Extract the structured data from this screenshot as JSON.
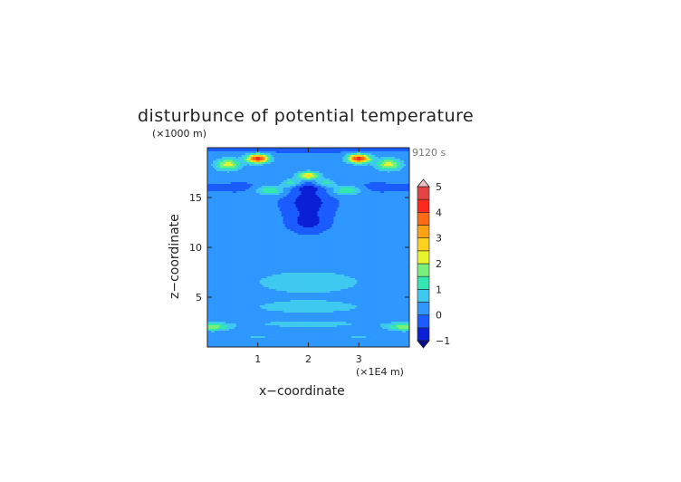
{
  "chart_data": {
    "type": "heatmap",
    "title": "disturbunce of potential temperature",
    "ylabel": "z−coordinate",
    "xlabel": "x−coordinate",
    "y_unit": "(×1000 m)",
    "x_unit": "(×1E4 m)",
    "time_label": "9120 s",
    "xlim": [
      0,
      4
    ],
    "ylim": [
      0,
      20
    ],
    "x_ticks": [
      {
        "value": 1,
        "label": "1"
      },
      {
        "value": 2,
        "label": "2"
      },
      {
        "value": 3,
        "label": "3"
      }
    ],
    "y_ticks": [
      {
        "value": 5,
        "label": "5"
      },
      {
        "value": 10,
        "label": "10"
      },
      {
        "value": 15,
        "label": "15"
      }
    ],
    "colorbar": {
      "min": -1,
      "max": 5,
      "step": 0.5,
      "tick_labels": [
        {
          "value": 5,
          "label": "5"
        },
        {
          "value": 4,
          "label": "4"
        },
        {
          "value": 3,
          "label": "3"
        },
        {
          "value": 2,
          "label": "2"
        },
        {
          "value": 1,
          "label": "1"
        },
        {
          "value": 0,
          "label": "0"
        },
        {
          "value": -1,
          "label": "−1"
        }
      ],
      "colors": [
        "#0b1fd6",
        "#1a5cff",
        "#2f97ff",
        "#3fc9f0",
        "#35e6b0",
        "#7af07a",
        "#e8f52d",
        "#ffd21f",
        "#ffa114",
        "#ff6a16",
        "#ff2a1e",
        "#e44343",
        "#f08c8c"
      ],
      "under_color": "#0a0a8c",
      "over_color": "#f2c2c2"
    },
    "features": [
      {
        "x": 0.4,
        "z": 18.3,
        "amplitude": 2.2,
        "sx": 0.25,
        "sz": 0.6
      },
      {
        "x": 3.6,
        "z": 18.3,
        "amplitude": 2.2,
        "sx": 0.25,
        "sz": 0.6
      },
      {
        "x": 1.0,
        "z": 18.9,
        "amplitude": 4.3,
        "sx": 0.22,
        "sz": 0.45
      },
      {
        "x": 3.0,
        "z": 18.9,
        "amplitude": 4.3,
        "sx": 0.22,
        "sz": 0.45
      },
      {
        "x": 2.0,
        "z": 17.2,
        "amplitude": 2.6,
        "sx": 0.22,
        "sz": 0.4
      },
      {
        "x": 1.25,
        "z": 15.8,
        "amplitude": 1.7,
        "sx": 0.3,
        "sz": 0.5
      },
      {
        "x": 2.75,
        "z": 15.8,
        "amplitude": 1.7,
        "sx": 0.3,
        "sz": 0.5
      },
      {
        "x": 1.65,
        "z": 16.4,
        "amplitude": 1.3,
        "sx": 0.18,
        "sz": 0.45
      },
      {
        "x": 2.35,
        "z": 16.4,
        "amplitude": 1.3,
        "sx": 0.18,
        "sz": 0.45
      },
      {
        "x": 2.0,
        "z": 14.5,
        "amplitude": -1.0,
        "sx": 0.35,
        "sz": 1.2
      },
      {
        "x": 2.0,
        "z": 12.6,
        "amplitude": -0.9,
        "sx": 0.28,
        "sz": 0.8
      },
      {
        "x": 2.0,
        "z": 16.0,
        "amplitude": -0.6,
        "sx": 1.4,
        "sz": 0.4
      },
      {
        "x": 2.0,
        "z": 20.0,
        "amplitude": -0.5,
        "sx": 2.0,
        "sz": 0.35
      },
      {
        "x": 2.0,
        "z": 6.5,
        "amplitude": 0.85,
        "sx": 1.2,
        "sz": 1.3
      },
      {
        "x": 2.0,
        "z": 4.0,
        "amplitude": 0.7,
        "sx": 1.4,
        "sz": 0.8
      },
      {
        "x": 0.1,
        "z": 2.0,
        "amplitude": 1.6,
        "sx": 0.35,
        "sz": 0.4
      },
      {
        "x": 3.9,
        "z": 2.0,
        "amplitude": 1.6,
        "sx": 0.35,
        "sz": 0.4
      },
      {
        "x": 2.0,
        "z": 2.3,
        "amplitude": 0.6,
        "sx": 1.6,
        "sz": 0.5
      },
      {
        "x": 1.0,
        "z": 1.0,
        "amplitude": 0.5,
        "sx": 0.4,
        "sz": 0.5
      },
      {
        "x": 3.0,
        "z": 1.0,
        "amplitude": 0.5,
        "sx": 0.4,
        "sz": 0.5
      }
    ]
  }
}
